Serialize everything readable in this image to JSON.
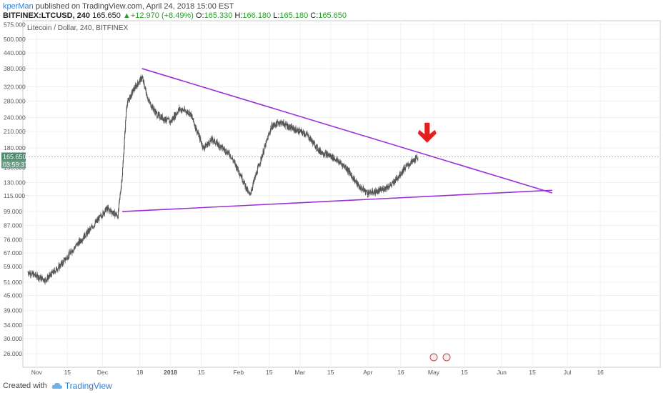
{
  "header": {
    "user": "kperMan",
    "published": " published on TradingView.com, April 24, 2018 15:00 EST",
    "symbol": "BITFINEX:LTCUSD, 240",
    "last": "165.650",
    "change": "+12.970 (+8.49%)",
    "open_label": "O:",
    "open": "165.330",
    "high_label": "H:",
    "high": "166.180",
    "low_label": "L:",
    "low": "165.180",
    "close_label": "C:",
    "close": "165.650"
  },
  "footer": {
    "created_with": "Created with",
    "brand": "TradingView"
  },
  "colors": {
    "up_arrow": "#2a9d2a",
    "trendline": "#9b30d9",
    "price_tag": "#4c8c6e",
    "annotation_arrow": "#e41e1e",
    "candles": "#555555"
  },
  "chart_data": {
    "type": "candlestick",
    "title": "Litecoin / Dollar, 240, BITFINEX",
    "scale": "log",
    "ylim": [
      24,
      580
    ],
    "y_ticks": [
      "575.000",
      "500.000",
      "440.000",
      "380.000",
      "320.000",
      "280.000",
      "240.000",
      "210.000",
      "180.000",
      "150.000",
      "130.000",
      "115.000",
      "99.000",
      "87.000",
      "76.000",
      "67.000",
      "59.000",
      "51.000",
      "45.000",
      "39.000",
      "34.000",
      "30.000",
      "26.000"
    ],
    "x_ticks": [
      "Nov",
      "15",
      "Dec",
      "18",
      "2018",
      "15",
      "Feb",
      "15",
      "Mar",
      "15",
      "Apr",
      "16",
      "May",
      "15",
      "Jun",
      "15",
      "Jul",
      "16"
    ],
    "price_tag": "165.650",
    "countdown_tag": "03:59:37",
    "approx_series": {
      "name": "LTCUSD close (approx.)",
      "dates": [
        "2017-10-28",
        "2017-11-05",
        "2017-11-12",
        "2017-11-19",
        "2017-11-26",
        "2017-12-03",
        "2017-12-08",
        "2017-12-10",
        "2017-12-12",
        "2017-12-15",
        "2017-12-19",
        "2017-12-22",
        "2017-12-26",
        "2018-01-01",
        "2018-01-05",
        "2018-01-10",
        "2018-01-16",
        "2018-01-20",
        "2018-01-28",
        "2018-02-02",
        "2018-02-06",
        "2018-02-10",
        "2018-02-16",
        "2018-02-20",
        "2018-02-26",
        "2018-03-04",
        "2018-03-10",
        "2018-03-16",
        "2018-03-22",
        "2018-03-28",
        "2018-04-01",
        "2018-04-06",
        "2018-04-12",
        "2018-04-18",
        "2018-04-24"
      ],
      "values": [
        56,
        52,
        60,
        72,
        85,
        102,
        95,
        140,
        270,
        310,
        350,
        280,
        245,
        230,
        260,
        250,
        180,
        195,
        170,
        140,
        115,
        150,
        220,
        230,
        215,
        205,
        175,
        165,
        150,
        125,
        118,
        120,
        128,
        150,
        165.65
      ]
    },
    "annotations": {
      "upper_trendline": {
        "start": {
          "date": "2017-12-19",
          "price": 380
        },
        "end": {
          "date": "2018-06-24",
          "price": 118
        }
      },
      "lower_trendline": {
        "start": {
          "date": "2017-12-10",
          "price": 99
        },
        "end": {
          "date": "2018-06-24",
          "price": 121
        }
      },
      "arrow": {
        "date": "2018-04-28",
        "price": 205,
        "direction": "down"
      }
    }
  }
}
